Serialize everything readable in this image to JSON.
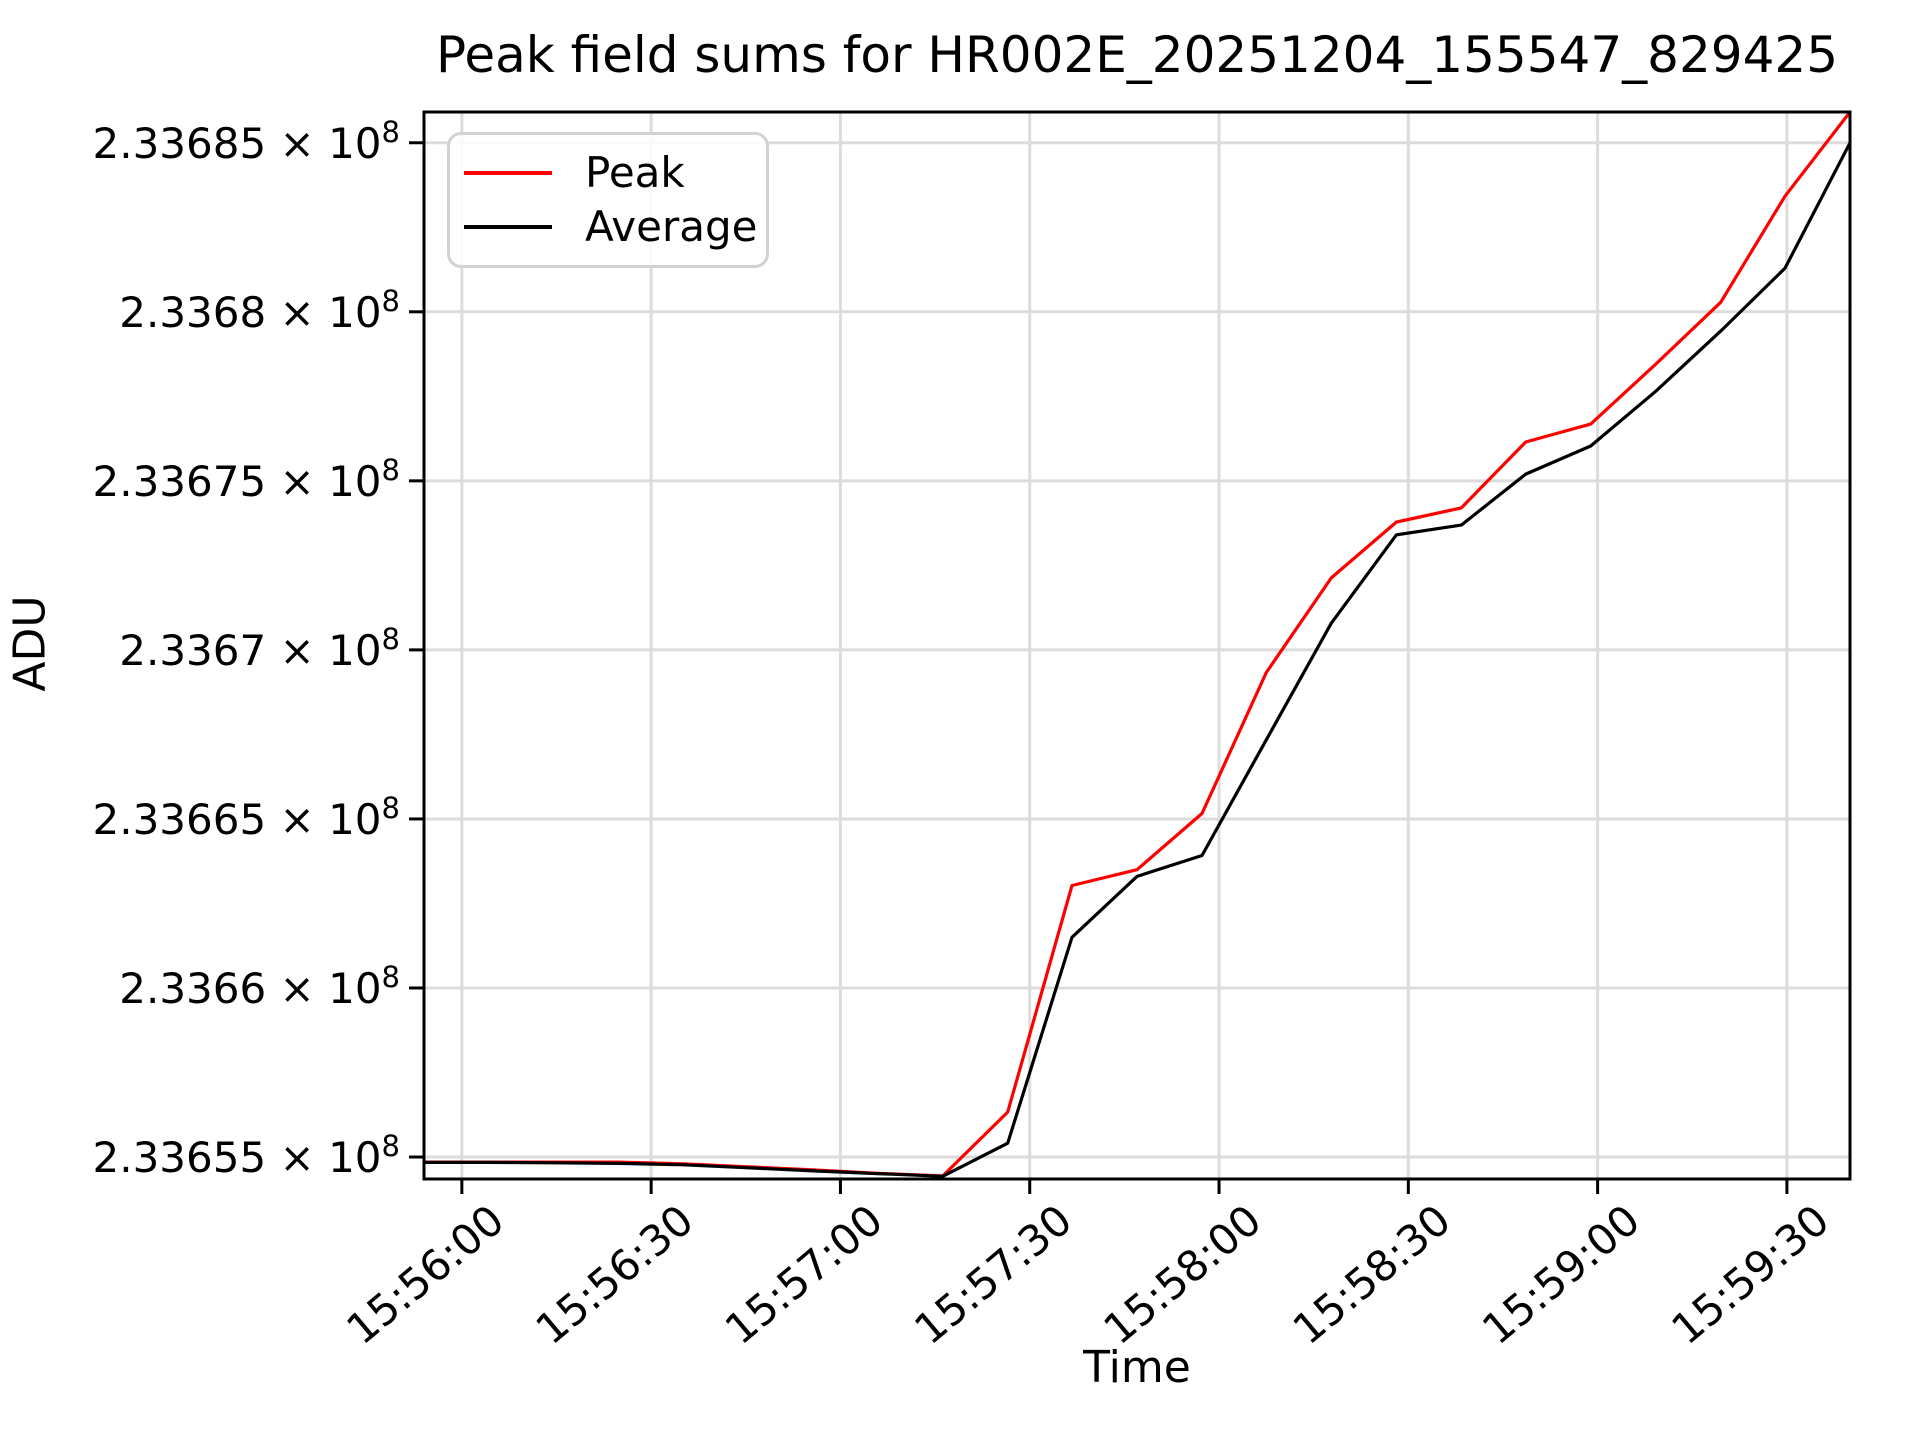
{
  "title": "Peak field sums for HR002E_20251204_155547_829425",
  "axes": {
    "x_label": "Time",
    "y_label": "ADU"
  },
  "legend": {
    "entries": [
      {
        "label": "Peak",
        "color": "#ff0000"
      },
      {
        "label": "Average",
        "color": "#000000"
      }
    ]
  },
  "style": {
    "grid_color": "#dcdcdc",
    "spine_color": "#000000",
    "tick_label_color": "#000000",
    "background": "#ffffff"
  },
  "chart_data": {
    "type": "line",
    "title": "Peak field sums for HR002E_20251204_155547_829425",
    "xlabel": "Time",
    "ylabel": "ADU",
    "grid": true,
    "legend_position": "upper left",
    "x_axis": {
      "range_seconds": [
        57354,
        57580
      ],
      "tick_seconds": [
        57360,
        57390,
        57420,
        57450,
        57480,
        57510,
        57540,
        57570
      ],
      "tick_labels": [
        "15:56:00",
        "15:56:30",
        "15:57:00",
        "15:57:30",
        "15:58:00",
        "15:58:30",
        "15:59:00",
        "15:59:30"
      ],
      "tick_rotation_deg": 40
    },
    "y_axis": {
      "range": [
        233654350,
        233685910
      ],
      "tick_values": [
        233655000,
        233660000,
        233665000,
        233670000,
        233675000,
        233680000,
        233685000
      ],
      "tick_labels": [
        "2.33655 × 10^8",
        "2.3366 × 10^8",
        "2.33665 × 10^8",
        "2.3367 × 10^8",
        "2.33675 × 10^8",
        "2.3368 × 10^8",
        "2.33685 × 10^8"
      ]
    },
    "x_times": [
      "15:55:54",
      "15:56:04",
      "15:56:15",
      "15:56:25",
      "15:56:35",
      "15:56:45",
      "15:56:56",
      "15:57:06",
      "15:57:16",
      "15:57:26",
      "15:57:37",
      "15:57:47",
      "15:57:57",
      "15:58:07",
      "15:58:18",
      "15:58:28",
      "15:58:38",
      "15:58:48",
      "15:58:59",
      "15:59:09",
      "15:59:19",
      "15:59:30",
      "15:59:40"
    ],
    "x_seconds": [
      57354.0,
      57364.3,
      57374.5,
      57384.8,
      57395.1,
      57405.4,
      57415.6,
      57425.9,
      57436.2,
      57446.5,
      57456.7,
      57467.0,
      57477.3,
      57487.5,
      57497.8,
      57508.1,
      57518.4,
      57528.6,
      57538.9,
      57549.2,
      57559.5,
      57569.7,
      57580.0
    ],
    "series": [
      {
        "name": "Peak",
        "color": "#ff0000",
        "values": [
          233654850,
          233654850,
          233654850,
          233654850,
          233654800,
          233654710,
          233654620,
          233654520,
          233654440,
          233656330,
          233663030,
          233663500,
          233665160,
          233669330,
          233672130,
          233673780,
          233674200,
          233676150,
          233676680,
          233678450,
          233680280,
          233683420,
          233685910
        ]
      },
      {
        "name": "Average",
        "color": "#000000",
        "values": [
          233654840,
          233654840,
          233654830,
          233654810,
          233654770,
          233654680,
          233654590,
          233654510,
          233654430,
          233655410,
          233661500,
          233663300,
          233663920,
          233667340,
          233670790,
          233673400,
          233673690,
          233675200,
          233676030,
          233677650,
          233679430,
          233681290,
          233685000
        ]
      }
    ]
  }
}
